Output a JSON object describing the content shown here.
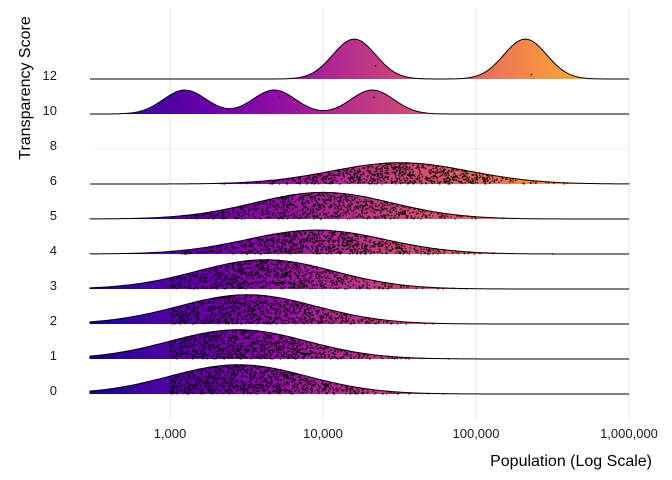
{
  "chart_data": {
    "type": "ridgeline",
    "xlabel": "Population (Log Scale)",
    "ylabel": "Transparency Score",
    "x_scale": "log10",
    "xlim": [
      300,
      1000000
    ],
    "x_ticks": [
      1000,
      10000,
      100000,
      1000000
    ],
    "x_tick_labels": [
      "1,000",
      "10,000",
      "100,000",
      "1,000,000"
    ],
    "grid": true,
    "fill_gradient": "plasma (dark purple at low population → yellow at high population)",
    "point_color": "#000000",
    "rows": [
      {
        "category": "0",
        "peak_population": 2800,
        "relative_height": 0.55
      },
      {
        "category": "1",
        "peak_population": 2800,
        "relative_height": 0.55
      },
      {
        "category": "2",
        "peak_population": 3200,
        "relative_height": 0.55
      },
      {
        "category": "3",
        "peak_population": 4200,
        "relative_height": 0.55
      },
      {
        "category": "4",
        "peak_population": 9000,
        "relative_height": 0.45
      },
      {
        "category": "5",
        "peak_population": 10000,
        "relative_height": 0.5
      },
      {
        "category": "6",
        "peak_population": 32000,
        "relative_height": 0.4
      },
      {
        "category": "8",
        "peak_population": null,
        "relative_height": 0
      },
      {
        "category": "10",
        "peak_population": [
          1250,
          4800,
          21000
        ],
        "relative_height": 0.45
      },
      {
        "category": "12",
        "peak_population": [
          16000,
          210000
        ],
        "relative_height": 0.75
      }
    ]
  }
}
